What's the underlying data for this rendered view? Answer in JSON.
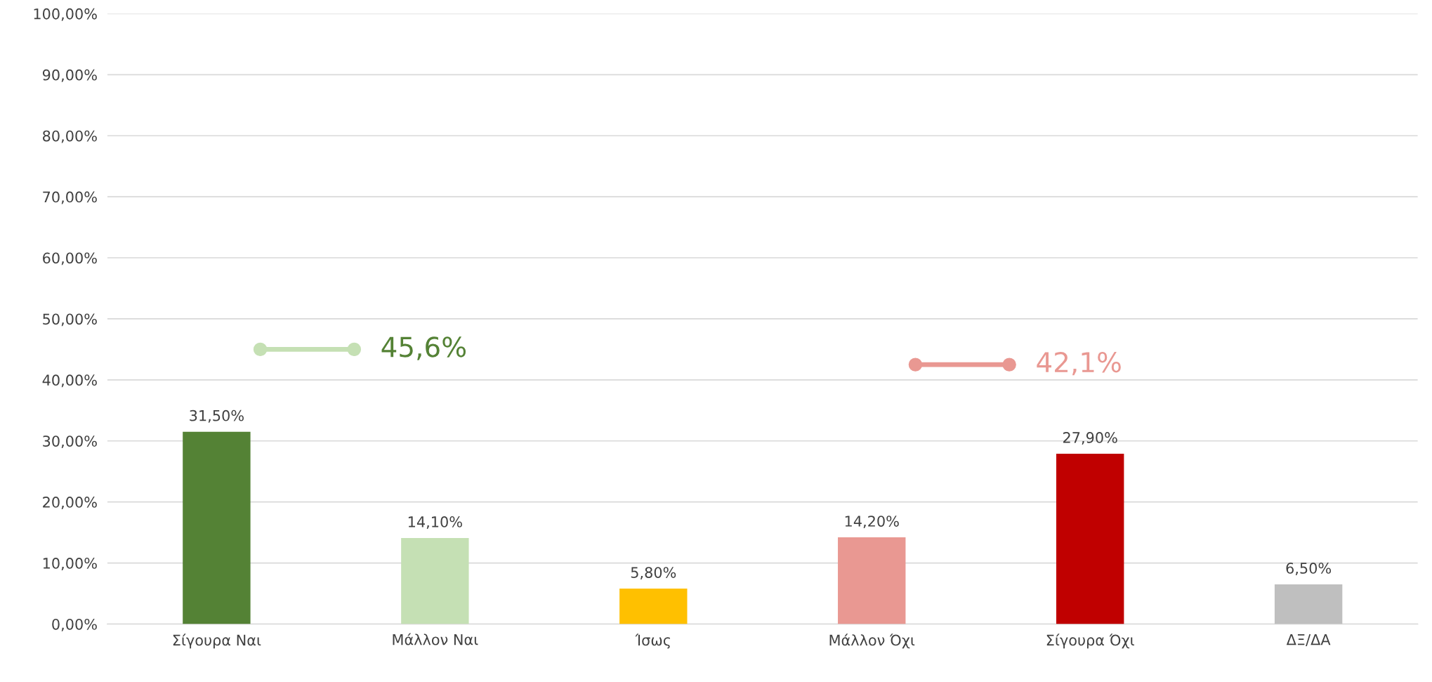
{
  "chart_data": {
    "type": "bar",
    "categories": [
      "Σίγουρα Ναι",
      "Μάλλον Ναι",
      "Ίσως",
      "Μάλλον Όχι",
      "Σίγουρα Όχι",
      "ΔΞ/ΔΑ"
    ],
    "values": [
      31.5,
      14.1,
      5.8,
      14.2,
      27.9,
      6.5
    ],
    "colors": [
      "#548235",
      "#c5e0b4",
      "#ffc000",
      "#e99892",
      "#c00000",
      "#bfbfbf"
    ],
    "value_labels": [
      "31,50%",
      "14,10%",
      "5,80%",
      "14,20%",
      "27,90%",
      "6,50%"
    ],
    "ylim": [
      0,
      100
    ],
    "yticks": [
      {
        "value": 0,
        "label": "0,00%"
      },
      {
        "value": 10,
        "label": "10,00%"
      },
      {
        "value": 20,
        "label": "20,00%"
      },
      {
        "value": 30,
        "label": "30,00%"
      },
      {
        "value": 40,
        "label": "40,00%"
      },
      {
        "value": 50,
        "label": "50,00%"
      },
      {
        "value": 60,
        "label": "60,00%"
      },
      {
        "value": 70,
        "label": "70,00%"
      },
      {
        "value": 80,
        "label": "80,00%"
      },
      {
        "value": 90,
        "label": "90,00%"
      },
      {
        "value": 100,
        "label": "100,00%"
      }
    ],
    "grid": "y",
    "annotations": [
      "45,6%",
      "42,1%"
    ]
  }
}
